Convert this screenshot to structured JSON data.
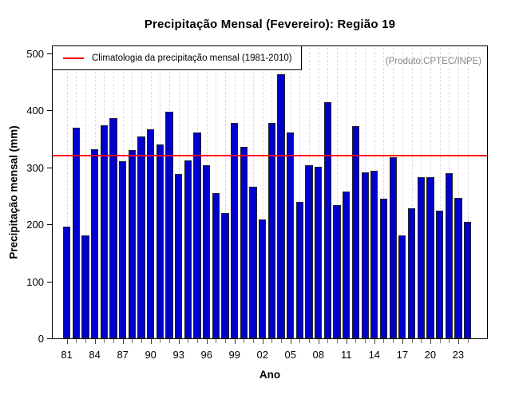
{
  "title": "Precipitação Mensal (Fevereiro): Região 19",
  "produto_note": "(Produto:CPTEC/INPE)",
  "legend_label": "Climatologia da precipitação mensal (1981-2010)",
  "xlabel": "Ano",
  "ylabel": "Precipitação mensal (mm)",
  "chart_data": {
    "type": "bar",
    "title": "Precipitação Mensal (Fevereiro): Região 19",
    "xlabel": "Ano",
    "ylabel": "Precipitação mensal (mm)",
    "ylim": [
      0,
      500
    ],
    "y_ticks": [
      0,
      100,
      200,
      300,
      400,
      500
    ],
    "x_tick_label_step": 3,
    "categories": [
      "1981",
      "1982",
      "1983",
      "1984",
      "1985",
      "1986",
      "1987",
      "1988",
      "1989",
      "1990",
      "1991",
      "1992",
      "1993",
      "1994",
      "1995",
      "1996",
      "1997",
      "1998",
      "1999",
      "2000",
      "2001",
      "2002",
      "2003",
      "2004",
      "2005",
      "2006",
      "2007",
      "2008",
      "2009",
      "2010",
      "2011",
      "2012",
      "2013",
      "2014",
      "2015",
      "2016",
      "2017",
      "2018",
      "2019",
      "2020",
      "2021",
      "2022",
      "2023",
      "2024"
    ],
    "values": [
      196,
      369,
      180,
      332,
      374,
      386,
      311,
      330,
      354,
      366,
      340,
      397,
      288,
      312,
      361,
      303,
      254,
      220,
      378,
      335,
      266,
      209,
      378,
      463,
      361,
      239,
      303,
      301,
      414,
      234,
      258,
      372,
      291,
      294,
      245,
      317,
      181,
      228,
      282,
      283,
      224,
      290,
      246,
      204
    ],
    "climatology_line": 320,
    "legend_entry": "Climatologia da precipitação mensal (1981-2010)",
    "annotation": "(Produto:CPTEC/INPE)",
    "legend_position": "top-left",
    "grid": "vertical-dashed",
    "bar_color": "#0000cc",
    "bar_border_color": "#23232b",
    "line_color": "#ff0000",
    "grid_color": "#dcdcdc",
    "annotation_color": "#878787"
  }
}
